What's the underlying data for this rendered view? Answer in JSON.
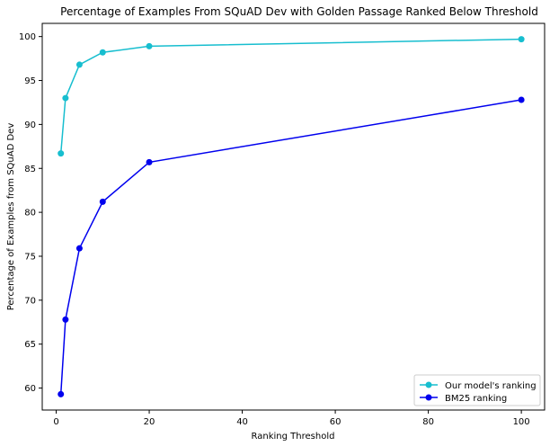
{
  "chart_data": {
    "type": "line",
    "title": "Percentage of Examples From SQuAD Dev with Golden Passage Ranked Below Threshold",
    "xlabel": "Ranking Threshold",
    "ylabel": "Percentage of Examples from SQuAD Dev",
    "xlim": [
      -3,
      105
    ],
    "ylim": [
      57.5,
      101.5
    ],
    "xticks": [
      0,
      20,
      40,
      60,
      80,
      100
    ],
    "yticks": [
      60,
      65,
      70,
      75,
      80,
      85,
      90,
      95,
      100
    ],
    "grid": false,
    "legend_position": "lower-right",
    "x": [
      1,
      2,
      5,
      10,
      20,
      100
    ],
    "series": [
      {
        "name": "Our model's ranking",
        "color": "#17becf",
        "values": [
          86.7,
          93.0,
          96.8,
          98.2,
          98.9,
          99.7
        ]
      },
      {
        "name": "BM25 ranking",
        "color": "#0000ee",
        "values": [
          59.3,
          67.8,
          75.9,
          81.2,
          85.7,
          92.8
        ]
      }
    ]
  }
}
